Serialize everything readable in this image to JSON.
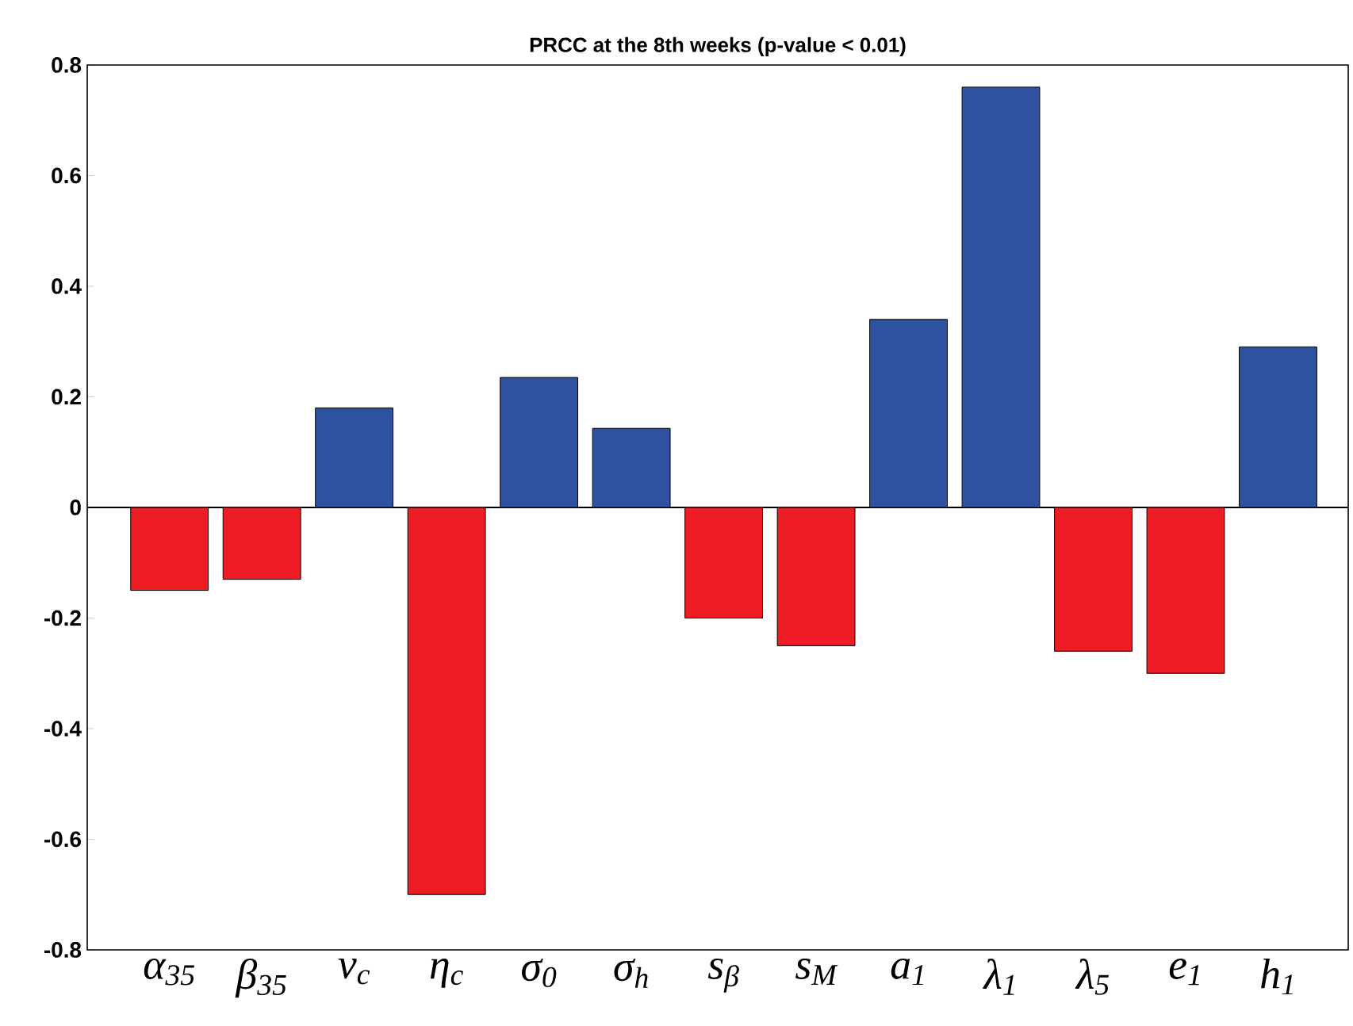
{
  "chart_data": {
    "type": "bar",
    "title": "PRCC at the 8th weeks (p-value < 0.01)",
    "categories": [
      "α$_{35}$",
      "β$_{35}$",
      "ν$_{c}$",
      "η$_{c}$",
      "σ$_{0}$",
      "σ$_{h}$",
      "s$_{β}$",
      "s$_{M}$",
      "a$_{1}$",
      "λ$_{1}$",
      "λ$_{5}$",
      "e$_{1}$",
      "h$_{1}$"
    ],
    "values": [
      -0.15,
      -0.13,
      0.18,
      -0.7,
      0.235,
      0.143,
      -0.2,
      -0.25,
      0.34,
      0.76,
      -0.26,
      -0.3,
      0.29
    ],
    "colors": [
      "#ee1c24",
      "#ee1c24",
      "#2f52a0",
      "#ee1c24",
      "#2f52a0",
      "#2f52a0",
      "#ee1c24",
      "#ee1c24",
      "#2f52a0",
      "#2f52a0",
      "#ee1c24",
      "#ee1c24",
      "#2f52a0"
    ],
    "ylim": [
      -0.8,
      0.8
    ],
    "yticks": [
      -0.8,
      -0.6,
      -0.4,
      -0.2,
      0,
      0.2,
      0.4,
      0.6,
      0.8
    ]
  }
}
